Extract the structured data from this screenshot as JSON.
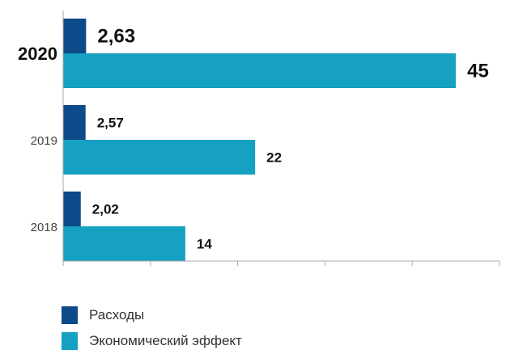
{
  "chart_data": {
    "type": "bar",
    "orientation": "horizontal",
    "categories": [
      "2020",
      "2019",
      "2018"
    ],
    "highlighted_category": "2020",
    "series": [
      {
        "name": "Расходы",
        "color": "#0d4a8a",
        "values": [
          2.63,
          2.57,
          2.02
        ],
        "labels": [
          "2,63",
          "2,57",
          "2,02"
        ]
      },
      {
        "name": "Экономический эффект",
        "color": "#16a0c1",
        "values": [
          45,
          22,
          14
        ],
        "labels": [
          "45",
          "22",
          "14"
        ]
      }
    ],
    "x_ticks": [
      "0",
      "10",
      "20",
      "30",
      "40",
      "50"
    ],
    "xlim": [
      0,
      50
    ],
    "grid": false,
    "legend_position": "bottom-left"
  }
}
